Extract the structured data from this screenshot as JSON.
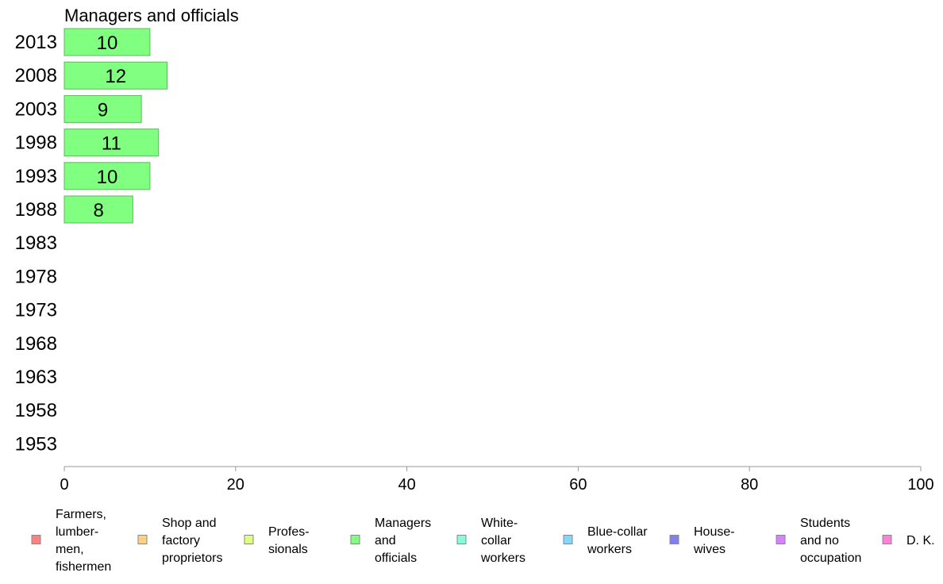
{
  "chart_data": {
    "type": "bar",
    "orientation": "horizontal",
    "title": "Managers and officials",
    "categories": [
      "2013",
      "2008",
      "2003",
      "1998",
      "1993",
      "1988",
      "1983",
      "1978",
      "1973",
      "1968",
      "1963",
      "1958",
      "1953"
    ],
    "series": [
      {
        "name": "Managers and officials",
        "color": "#80ff80",
        "values": [
          10,
          12,
          9,
          11,
          10,
          8,
          null,
          null,
          null,
          null,
          null,
          null,
          null
        ],
        "labels": [
          "10",
          "12",
          "9",
          "11",
          "10",
          "8",
          "",
          "",
          "",
          "",
          "",
          "",
          ""
        ]
      }
    ],
    "xlim": [
      0,
      100
    ],
    "xticks": [
      0,
      20,
      40,
      60,
      80,
      100
    ],
    "xtick_labels": [
      "0",
      "20",
      "40",
      "60",
      "80",
      "100"
    ],
    "grid": false,
    "legend_position": "bottom",
    "legend": [
      {
        "label": [
          "Farmers,",
          "lumber-",
          "men,",
          "fishermen"
        ],
        "color": "#ff8080"
      },
      {
        "label": [
          "Shop and",
          "factory",
          "proprietors"
        ],
        "color": "#ffd080"
      },
      {
        "label": [
          "Profes-",
          "sionals"
        ],
        "color": "#e0ff80"
      },
      {
        "label": [
          "Managers",
          "and",
          "officials"
        ],
        "color": "#80ff80"
      },
      {
        "label": [
          "White-",
          "collar",
          "workers"
        ],
        "color": "#80ffd8"
      },
      {
        "label": [
          "Blue-collar",
          "workers"
        ],
        "color": "#80d8ff"
      },
      {
        "label": [
          "House-",
          "wives"
        ],
        "color": "#8080f0"
      },
      {
        "label": [
          "Students",
          "and no",
          "occupation"
        ],
        "color": "#d880ff"
      },
      {
        "label": [
          "D. K."
        ],
        "color": "#ff80d8"
      }
    ]
  }
}
